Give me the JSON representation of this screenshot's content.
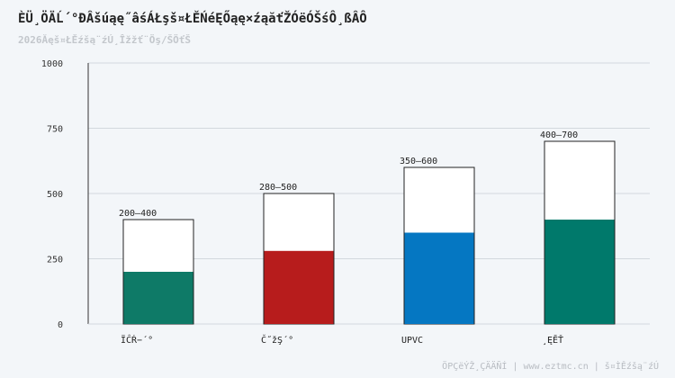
{
  "header": {
    "title": "ÈÜ¸ÖÄĹ´°ÐÂšúąę˝âśÁŁşš¤ŁĚŃéĘŐąę×źąăťŽÓëÓŠśÔ¸ßÂÔ",
    "subtitle": "2026Ăęš¤ŁĚźšą¨źÚ¸Îžžť¨Öş/ŠÖťŠ"
  },
  "footer": {
    "text": "ÖРÇëÝŽ¸ÇÄÄÑÍ | www.eztmc.cn | š¤ÌĚźšą¨źÚ"
  },
  "colors": {
    "axis": "#333333",
    "grid": "#d3d8de",
    "range_fill": "#ffffff",
    "range_stroke": "#222222"
  },
  "chart_data": {
    "type": "bar",
    "categories": [
      "ÏĈŔ−´°",
      "Č˝žŞ´°",
      "UPVC",
      "¸ĘĔŤ"
    ],
    "series": [
      {
        "values": [
          200,
          280,
          350,
          400
        ],
        "colors": [
          "#0e7a67",
          "#b71c1c",
          "#0577c2",
          "#00796b"
        ]
      },
      {
        "values": [
          400,
          500,
          600,
          700
        ]
      }
    ],
    "range_labels": [
      "200–400",
      "280–500",
      "350–600",
      "400–700"
    ],
    "yticks": [
      0,
      250,
      500,
      750,
      1000
    ],
    "ylim": [
      0,
      1000
    ],
    "grid": true
  }
}
